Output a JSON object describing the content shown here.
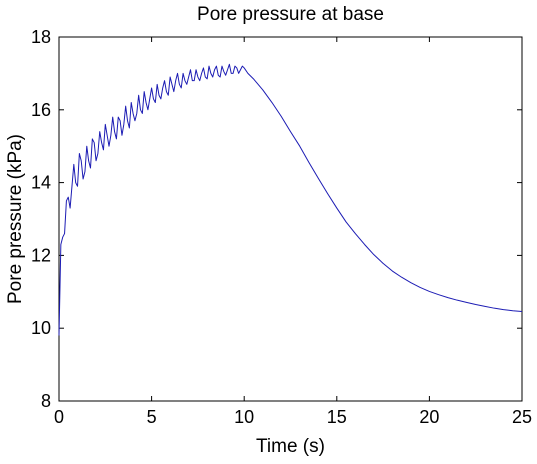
{
  "chart_data": {
    "type": "line",
    "title": "Pore pressure at base",
    "xlabel": "Time (s)",
    "ylabel": "Pore pressure (kPa)",
    "xlim": [
      0,
      25
    ],
    "ylim": [
      8,
      18
    ],
    "xticks": [
      0,
      5,
      10,
      15,
      20,
      25
    ],
    "yticks": [
      8,
      10,
      12,
      14,
      16,
      18
    ],
    "grid": false,
    "legend": "none",
    "series": [
      {
        "color": "#1c1cb4",
        "x": [
          0.0,
          0.1,
          0.2,
          0.3,
          0.4,
          0.5,
          0.6,
          0.7,
          0.8,
          0.9,
          1.0,
          1.1,
          1.2,
          1.3,
          1.4,
          1.5,
          1.6,
          1.7,
          1.8,
          1.9,
          2.0,
          2.1,
          2.2,
          2.3,
          2.4,
          2.5,
          2.6,
          2.7,
          2.8,
          2.9,
          3.0,
          3.1,
          3.2,
          3.3,
          3.4,
          3.5,
          3.6,
          3.7,
          3.8,
          3.9,
          4.0,
          4.1,
          4.2,
          4.3,
          4.4,
          4.5,
          4.6,
          4.7,
          4.8,
          4.9,
          5.0,
          5.1,
          5.2,
          5.3,
          5.4,
          5.5,
          5.6,
          5.7,
          5.8,
          5.9,
          6.0,
          6.1,
          6.2,
          6.3,
          6.4,
          6.5,
          6.6,
          6.7,
          6.8,
          6.9,
          7.0,
          7.1,
          7.2,
          7.3,
          7.4,
          7.5,
          7.6,
          7.7,
          7.8,
          7.9,
          8.0,
          8.1,
          8.2,
          8.3,
          8.4,
          8.5,
          8.6,
          8.7,
          8.8,
          8.9,
          9.0,
          9.1,
          9.2,
          9.3,
          9.4,
          9.5,
          9.6,
          9.7,
          9.8,
          9.9,
          10.0,
          10.2,
          10.5,
          11.0,
          11.5,
          12.0,
          12.5,
          13.0,
          13.5,
          14.0,
          14.5,
          15.0,
          15.5,
          16.0,
          16.5,
          17.0,
          17.5,
          18.0,
          18.5,
          19.0,
          19.5,
          20.0,
          20.5,
          21.0,
          21.5,
          22.0,
          22.5,
          23.0,
          23.5,
          24.0,
          24.5,
          25.0
        ],
        "y": [
          9.8,
          12.3,
          12.5,
          12.6,
          13.5,
          13.6,
          13.3,
          13.9,
          14.5,
          14.0,
          13.9,
          14.8,
          14.6,
          14.1,
          14.3,
          15.0,
          14.6,
          14.4,
          15.2,
          15.1,
          14.6,
          14.8,
          15.4,
          15.1,
          14.9,
          15.6,
          15.3,
          15.0,
          15.3,
          15.8,
          15.4,
          15.2,
          15.8,
          15.7,
          15.3,
          15.6,
          16.1,
          15.7,
          15.5,
          16.2,
          15.9,
          15.7,
          15.9,
          16.4,
          16.0,
          15.9,
          16.5,
          16.2,
          16.0,
          16.3,
          16.6,
          16.3,
          16.2,
          16.7,
          16.4,
          16.3,
          16.6,
          16.8,
          16.5,
          16.4,
          16.9,
          16.7,
          16.5,
          16.8,
          17.0,
          16.7,
          16.6,
          17.0,
          16.8,
          16.7,
          16.9,
          17.1,
          16.8,
          16.8,
          17.1,
          16.9,
          16.8,
          17.0,
          17.15,
          16.9,
          16.85,
          17.2,
          17.0,
          16.9,
          17.1,
          17.2,
          16.95,
          16.9,
          17.2,
          17.05,
          16.95,
          17.1,
          17.25,
          17.0,
          17.0,
          17.2,
          17.15,
          17.0,
          17.1,
          17.2,
          17.15,
          17.0,
          16.85,
          16.55,
          16.2,
          15.82,
          15.4,
          15.0,
          14.55,
          14.12,
          13.7,
          13.3,
          12.92,
          12.6,
          12.3,
          12.02,
          11.78,
          11.57,
          11.4,
          11.25,
          11.12,
          11.01,
          10.92,
          10.84,
          10.77,
          10.71,
          10.65,
          10.6,
          10.55,
          10.51,
          10.48,
          10.46
        ]
      }
    ]
  }
}
